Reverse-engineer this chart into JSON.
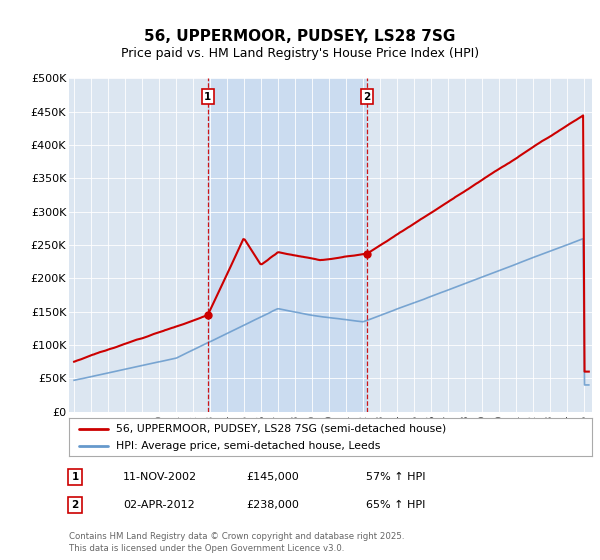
{
  "title": "56, UPPERMOOR, PUDSEY, LS28 7SG",
  "subtitle": "Price paid vs. HM Land Registry's House Price Index (HPI)",
  "ylabel_ticks": [
    "£0",
    "£50K",
    "£100K",
    "£150K",
    "£200K",
    "£250K",
    "£300K",
    "£350K",
    "£400K",
    "£450K",
    "£500K"
  ],
  "ytick_values": [
    0,
    50000,
    100000,
    150000,
    200000,
    250000,
    300000,
    350000,
    400000,
    450000,
    500000
  ],
  "ylim": [
    0,
    500000
  ],
  "background_color": "#dce6f1",
  "outer_bg_color": "#ffffff",
  "line1_color": "#cc0000",
  "line2_color": "#6699cc",
  "vline_color": "#cc0000",
  "shade_color": "#c5d8f0",
  "transaction1_year": 2002.87,
  "transaction1_price": 145000,
  "transaction1_label": "1",
  "transaction2_year": 2012.25,
  "transaction2_price": 238000,
  "transaction2_label": "2",
  "legend_line1": "56, UPPERMOOR, PUDSEY, LS28 7SG (semi-detached house)",
  "legend_line2": "HPI: Average price, semi-detached house, Leeds",
  "annotation1_date": "11-NOV-2002",
  "annotation1_price": "£145,000",
  "annotation1_pct": "57% ↑ HPI",
  "annotation2_date": "02-APR-2012",
  "annotation2_price": "£238,000",
  "annotation2_pct": "65% ↑ HPI",
  "footer": "Contains HM Land Registry data © Crown copyright and database right 2025.\nThis data is licensed under the Open Government Licence v3.0.",
  "title_fontsize": 11,
  "subtitle_fontsize": 9,
  "tick_fontsize": 8
}
